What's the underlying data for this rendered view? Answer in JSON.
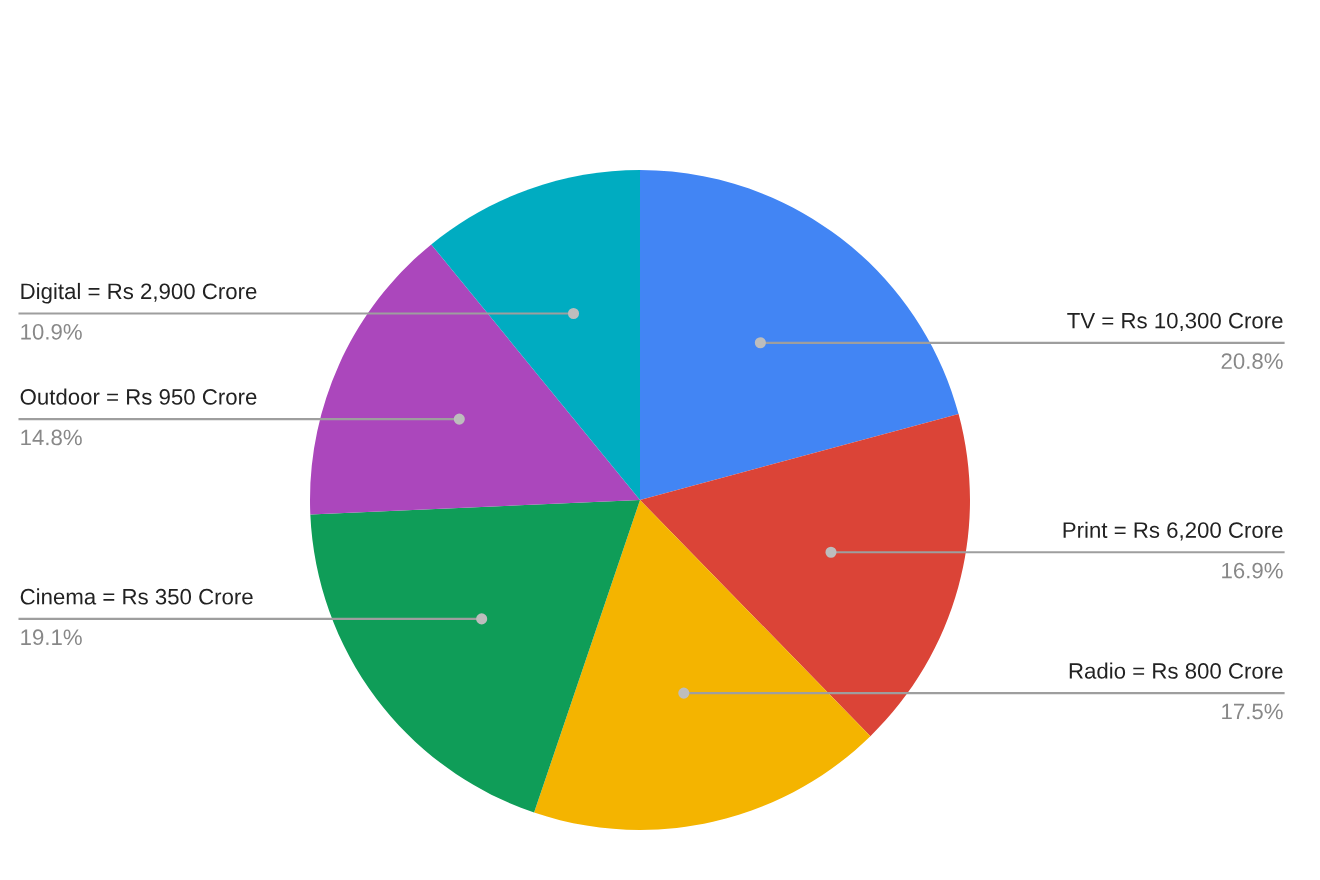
{
  "chart_data": {
    "type": "pie",
    "categories": [
      "TV = Rs 10,300 Crore",
      "Print = Rs 6,200 Crore",
      "Radio = Rs 800 Crore",
      "Cinema = Rs 350 Crore",
      "Outdoor = Rs 950 Crore",
      "Digital = Rs 2,900 Crore"
    ],
    "values": [
      20.8,
      16.9,
      17.5,
      19.1,
      14.8,
      10.9
    ],
    "value_labels": [
      "20.8%",
      "16.9%",
      "17.5%",
      "19.1%",
      "14.8%",
      "10.9%"
    ],
    "colors": [
      "#4285f4",
      "#db4437",
      "#f4b400",
      "#0f9d58",
      "#ab47bc",
      "#00acc1"
    ],
    "legend": false
  }
}
